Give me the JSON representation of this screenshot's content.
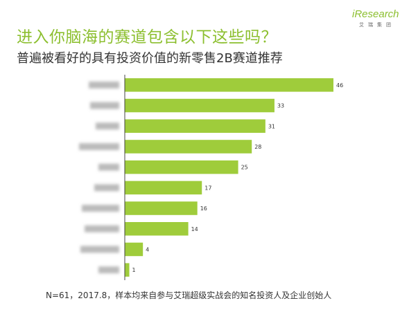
{
  "header": {
    "title": "进入你脑海的赛道包含以下这些吗？",
    "subtitle": "普遍被看好的具有投资价值的新零售2B赛道推荐",
    "logo_text": "iResearch",
    "logo_subtext": "艾瑞集团"
  },
  "footnote": "N=61，2017.8，样本均来自参与艾瑞超级实战会的知名投资人及企业创始人",
  "colors": {
    "bar": "#9fcc3b",
    "title": "#8cbf2f",
    "axis": "#444444",
    "blur": "#bbbbbb"
  },
  "chart_data": {
    "type": "bar",
    "orientation": "horizontal",
    "categories": [
      "",
      "",
      "",
      "",
      "",
      "",
      "",
      "",
      "",
      ""
    ],
    "values": [
      46,
      33,
      31,
      28,
      25,
      17,
      16,
      14,
      4,
      1
    ],
    "xlim": [
      0,
      50
    ],
    "grid": false,
    "legend": "none",
    "data_labels": true,
    "category_labels_blurred": true
  }
}
